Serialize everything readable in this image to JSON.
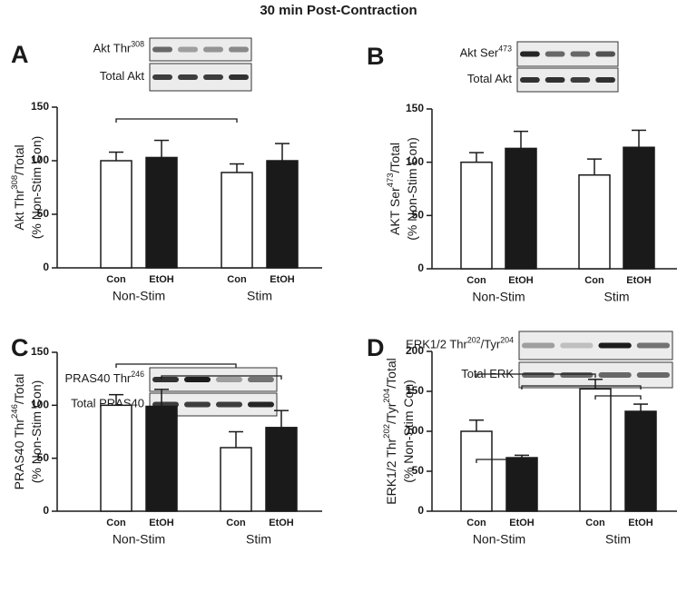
{
  "title": "30 min Post-Contraction",
  "chart_data": [
    {
      "type": "bar",
      "panel": "A",
      "blots": [
        [
          "Akt Thr",
          "308"
        ],
        [
          "Total Akt"
        ]
      ],
      "ylabel": [
        [
          "Akt Thr",
          "308",
          "/Total"
        ],
        [
          "(% Non-Stim Con)"
        ]
      ],
      "categories": [
        "Con",
        "EtOH",
        "Con",
        "EtOH"
      ],
      "groups": [
        "Non-Stim",
        "Stim"
      ],
      "values": [
        100,
        103,
        89,
        100
      ],
      "errors": [
        8,
        16,
        8,
        16
      ],
      "colors": [
        "#ffffff",
        "#1a1a1a",
        "#ffffff",
        "#1a1a1a"
      ],
      "ylim": [
        0,
        150
      ],
      "yticks": [
        0,
        50,
        100,
        150
      ]
    },
    {
      "type": "bar",
      "panel": "B",
      "blots": [
        [
          "Akt Ser",
          "473"
        ],
        [
          "Total Akt"
        ]
      ],
      "ylabel": [
        [
          "AKT Ser",
          "473",
          "/Total"
        ],
        [
          "(% Non-Stim Con)"
        ]
      ],
      "categories": [
        "Con",
        "EtOH",
        "Con",
        "EtOH"
      ],
      "groups": [
        "Non-Stim",
        "Stim"
      ],
      "values": [
        100,
        113,
        88,
        114
      ],
      "errors": [
        9,
        16,
        15,
        16
      ],
      "colors": [
        "#ffffff",
        "#1a1a1a",
        "#ffffff",
        "#1a1a1a"
      ],
      "ylim": [
        0,
        150
      ],
      "yticks": [
        0,
        50,
        100,
        150
      ]
    },
    {
      "type": "bar",
      "panel": "C",
      "blots": [
        [
          "PRAS40 Thr",
          "246"
        ],
        [
          "Total PRAS40"
        ]
      ],
      "ylabel": [
        [
          "PRAS40 Thr",
          "246",
          "/Total"
        ],
        [
          "(% Non-Stim Con)"
        ]
      ],
      "categories": [
        "Con",
        "EtOH",
        "Con",
        "EtOH"
      ],
      "groups": [
        "Non-Stim",
        "Stim"
      ],
      "values": [
        100,
        99,
        60,
        79
      ],
      "errors": [
        10,
        16,
        15,
        16
      ],
      "colors": [
        "#ffffff",
        "#1a1a1a",
        "#ffffff",
        "#1a1a1a"
      ],
      "ylim": [
        0,
        150
      ],
      "yticks": [
        0,
        50,
        100,
        150
      ]
    },
    {
      "type": "bar",
      "panel": "D",
      "blots": [
        [
          "ERK1/2 Thr",
          "202",
          "/Tyr",
          "204"
        ],
        [
          "Total  ERK"
        ]
      ],
      "ylabel": [
        [
          "ERK1/2 Thr",
          "202",
          "/Tyr",
          "204",
          "/Total"
        ],
        [
          "(% Non-Stim Con)"
        ]
      ],
      "categories": [
        "Con",
        "EtOH",
        "Con",
        "EtOH"
      ],
      "groups": [
        "Non-Stim",
        "Stim"
      ],
      "values": [
        100,
        67,
        153,
        125
      ],
      "errors": [
        14,
        3,
        12,
        9
      ],
      "colors": [
        "#ffffff",
        "#1a1a1a",
        "#ffffff",
        "#1a1a1a"
      ],
      "ylim": [
        0,
        200
      ],
      "yticks": [
        0,
        50,
        100,
        150,
        200
      ]
    }
  ]
}
